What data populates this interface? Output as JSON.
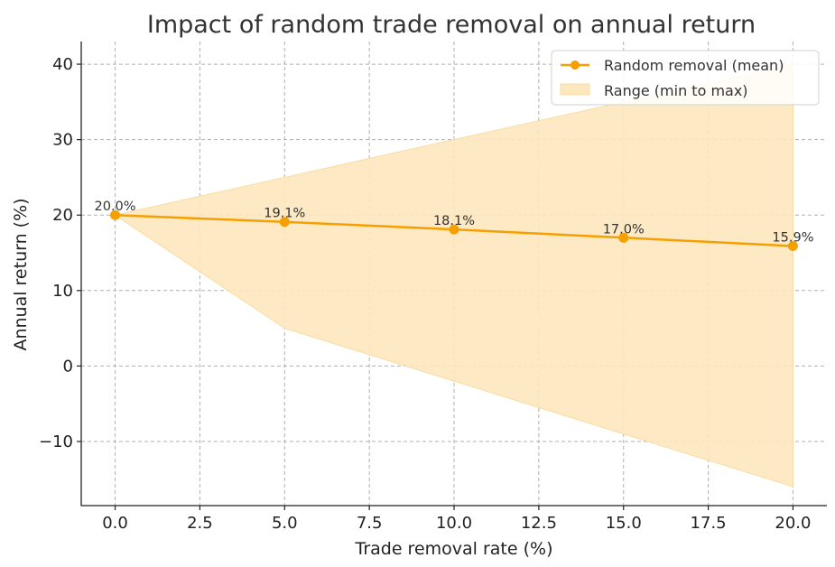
{
  "chart_data": {
    "type": "line",
    "title": "Impact of random trade removal on annual return",
    "xlabel": "Trade removal rate (%)",
    "ylabel": "Annual  return (%)",
    "xlim": [
      -1,
      21
    ],
    "ylim": [
      -18.5,
      43
    ],
    "x_ticks": [
      0.0,
      2.5,
      5.0,
      7.5,
      10.0,
      12.5,
      15.0,
      17.5,
      20.0
    ],
    "x_tick_labels": [
      "0.0",
      "2.5",
      "5.0",
      "7.5",
      "10.0",
      "12.5",
      "15.0",
      "17.5",
      "20.0"
    ],
    "y_ticks": [
      -10,
      0,
      10,
      20,
      30,
      40
    ],
    "y_tick_labels": [
      "−10",
      "0",
      "10",
      "20",
      "30",
      "40"
    ],
    "grid": true,
    "legend_position": "top-right",
    "colors": {
      "line": "#f5a000",
      "band": "#fde8be",
      "band_edge": "#f9dca2"
    },
    "series": [
      {
        "name": "Random removal (mean)",
        "x": [
          0,
          5,
          10,
          15,
          20
        ],
        "values": [
          20.0,
          19.1,
          18.1,
          17.0,
          15.9
        ],
        "labels": [
          "20.0%",
          "19.1%",
          "18.1%",
          "17.0%",
          "15.9%"
        ]
      }
    ],
    "range": {
      "name": "Range (min to max)",
      "x": [
        0,
        5,
        10,
        15,
        20
      ],
      "min": [
        20,
        5,
        -2,
        -9,
        -16
      ],
      "max": [
        20,
        25,
        30,
        35,
        40
      ]
    }
  }
}
